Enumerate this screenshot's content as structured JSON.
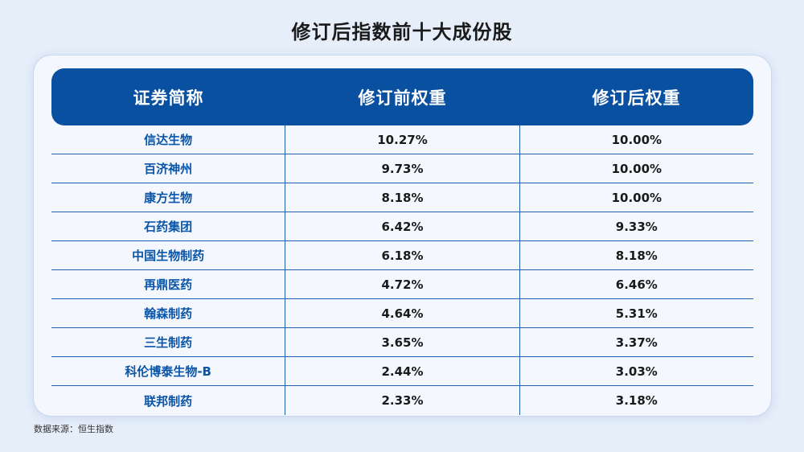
{
  "title": "修订后指数前十大成份股",
  "table": {
    "headers": [
      "证券简称",
      "修订前权重",
      "修订后权重"
    ],
    "rows": [
      [
        "信达生物",
        "10.27%",
        "10.00%"
      ],
      [
        "百济神州",
        "9.73%",
        "10.00%"
      ],
      [
        "康方生物",
        "8.18%",
        "10.00%"
      ],
      [
        "石药集团",
        "6.42%",
        "9.33%"
      ],
      [
        "中国生物制药",
        "6.18%",
        "8.18%"
      ],
      [
        "再鼎医药",
        "4.72%",
        "6.46%"
      ],
      [
        "翰森制药",
        "4.64%",
        "5.31%"
      ],
      [
        "三生制药",
        "3.65%",
        "3.37%"
      ],
      [
        "科伦博泰生物-B",
        "2.44%",
        "3.03%"
      ],
      [
        "联邦制药",
        "2.33%",
        "3.18%"
      ]
    ]
  },
  "source": "数据来源：恒生指数",
  "colors": {
    "header_bg": "#0a50a0",
    "name_text": "#0b55a8",
    "page_bg": "#e6eefa"
  }
}
